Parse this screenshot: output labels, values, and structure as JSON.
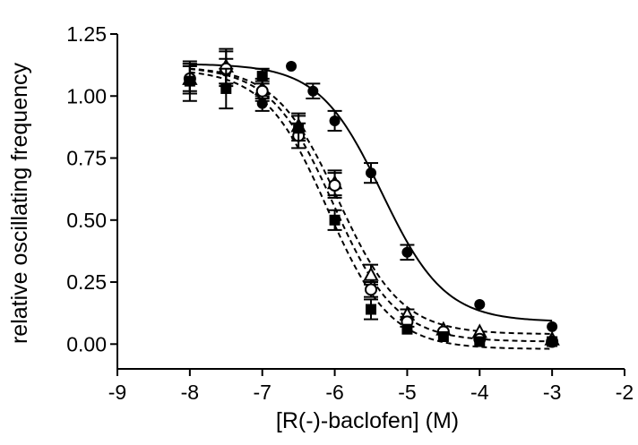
{
  "chart_data": {
    "type": "scatter",
    "title": "",
    "xlabel": "[R(-)-baclofen] (M)",
    "ylabel": "relative oscillating frequency",
    "xlim": [
      -9,
      -2
    ],
    "ylim": [
      -0.1,
      1.25
    ],
    "xticks": [
      -9,
      -8,
      -7,
      -6,
      -5,
      -4,
      -3,
      -2
    ],
    "xtick_labels": [
      "-9",
      "-8",
      "-7",
      "-6",
      "-5",
      "-4",
      "-3",
      "-2"
    ],
    "yticks": [
      0.0,
      0.25,
      0.5,
      0.75,
      1.0,
      1.25
    ],
    "ytick_labels": [
      "0.00",
      "0.25",
      "0.50",
      "0.75",
      "1.00",
      "1.25"
    ],
    "grid": false,
    "legend": "none",
    "series": [
      {
        "marker": "filled-circle",
        "line": "solid",
        "fit": {
          "top": 1.13,
          "bottom": 0.09,
          "log_ec50": -5.35,
          "hill": 1.0
        },
        "x": [
          -8,
          -7.5,
          -7,
          -6.6,
          -6.3,
          -6,
          -5.5,
          -5,
          -4,
          -3
        ],
        "y": [
          1.07,
          1.1,
          0.97,
          1.12,
          1.02,
          0.9,
          0.69,
          0.37,
          0.16,
          0.07
        ],
        "err": [
          0.05,
          0.05,
          0.03,
          0.0,
          0.03,
          0.04,
          0.04,
          0.03,
          0.0,
          0.0
        ]
      },
      {
        "marker": "open-triangle",
        "line": "dashed",
        "fit": {
          "top": 1.12,
          "bottom": 0.04,
          "log_ec50": -5.95,
          "hill": 1.0
        },
        "x": [
          -8,
          -7.5,
          -7,
          -6.5,
          -6,
          -5.5,
          -5,
          -4.5,
          -4,
          -3
        ],
        "y": [
          1.07,
          1.12,
          1.03,
          0.88,
          0.65,
          0.28,
          0.12,
          0.06,
          0.05,
          0.02
        ],
        "err": [
          0.06,
          0.07,
          0.04,
          0.05,
          0.05,
          0.04,
          0.02,
          0.0,
          0.0,
          0.0
        ]
      },
      {
        "marker": "open-circle",
        "line": "dashed",
        "fit": {
          "top": 1.12,
          "bottom": 0.01,
          "log_ec50": -6.02,
          "hill": 1.0
        },
        "x": [
          -8,
          -7.5,
          -7,
          -6.5,
          -6,
          -5.5,
          -5,
          -4.5,
          -4,
          -3
        ],
        "y": [
          1.07,
          1.11,
          1.02,
          0.84,
          0.64,
          0.22,
          0.09,
          0.05,
          0.02,
          0.01
        ],
        "err": [
          0.06,
          0.07,
          0.04,
          0.05,
          0.05,
          0.03,
          0.02,
          0.0,
          0.0,
          0.0
        ]
      },
      {
        "marker": "filled-square",
        "line": "dashed",
        "fit": {
          "top": 1.11,
          "bottom": -0.02,
          "log_ec50": -6.1,
          "hill": 1.0
        },
        "x": [
          -8,
          -7.5,
          -7,
          -6.5,
          -6,
          -5.5,
          -5,
          -4.5,
          -4,
          -3
        ],
        "y": [
          1.06,
          1.03,
          1.08,
          0.87,
          0.5,
          0.14,
          0.06,
          0.03,
          0.01,
          0.01
        ],
        "err": [
          0.08,
          0.08,
          0.03,
          0.05,
          0.04,
          0.04,
          0.0,
          0.0,
          0.0,
          0.0
        ]
      }
    ]
  }
}
